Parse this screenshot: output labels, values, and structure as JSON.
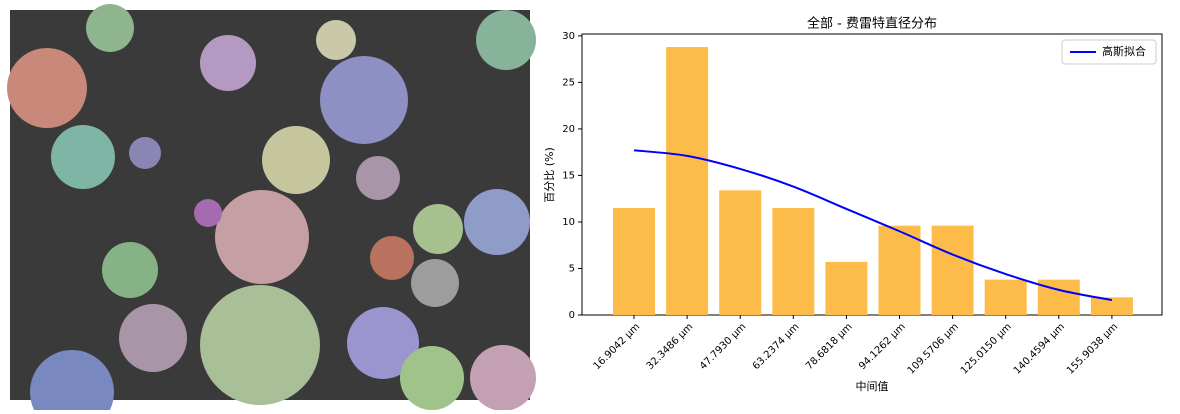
{
  "chart_data": {
    "type": "bar",
    "title": "全部 - 费雷特直径分布",
    "x_label": "中间值",
    "y_label": "百分比 (%)",
    "categories": [
      "16.9042 μm",
      "32.3486 μm",
      "47.7930 μm",
      "63.2374 μm",
      "78.6818 μm",
      "94.1262 μm",
      "109.5706 μm",
      "125.0150 μm",
      "140.4594 μm",
      "155.9038 μm"
    ],
    "values": [
      11.5,
      28.8,
      13.4,
      11.5,
      5.7,
      9.6,
      9.6,
      3.8,
      3.8,
      1.9
    ],
    "color": "#fdbc4a",
    "series": [
      {
        "name": "高斯拟合",
        "type": "line",
        "color": "#0000ff",
        "values": [
          17.7,
          17.1,
          15.7,
          13.8,
          11.4,
          9.0,
          6.5,
          4.4,
          2.7,
          1.6
        ]
      }
    ],
    "ylim": [
      0,
      30.2
    ],
    "yticks": [
      0,
      5,
      10,
      15,
      20,
      25,
      30
    ],
    "legend": "upper right",
    "grid": false
  }
}
